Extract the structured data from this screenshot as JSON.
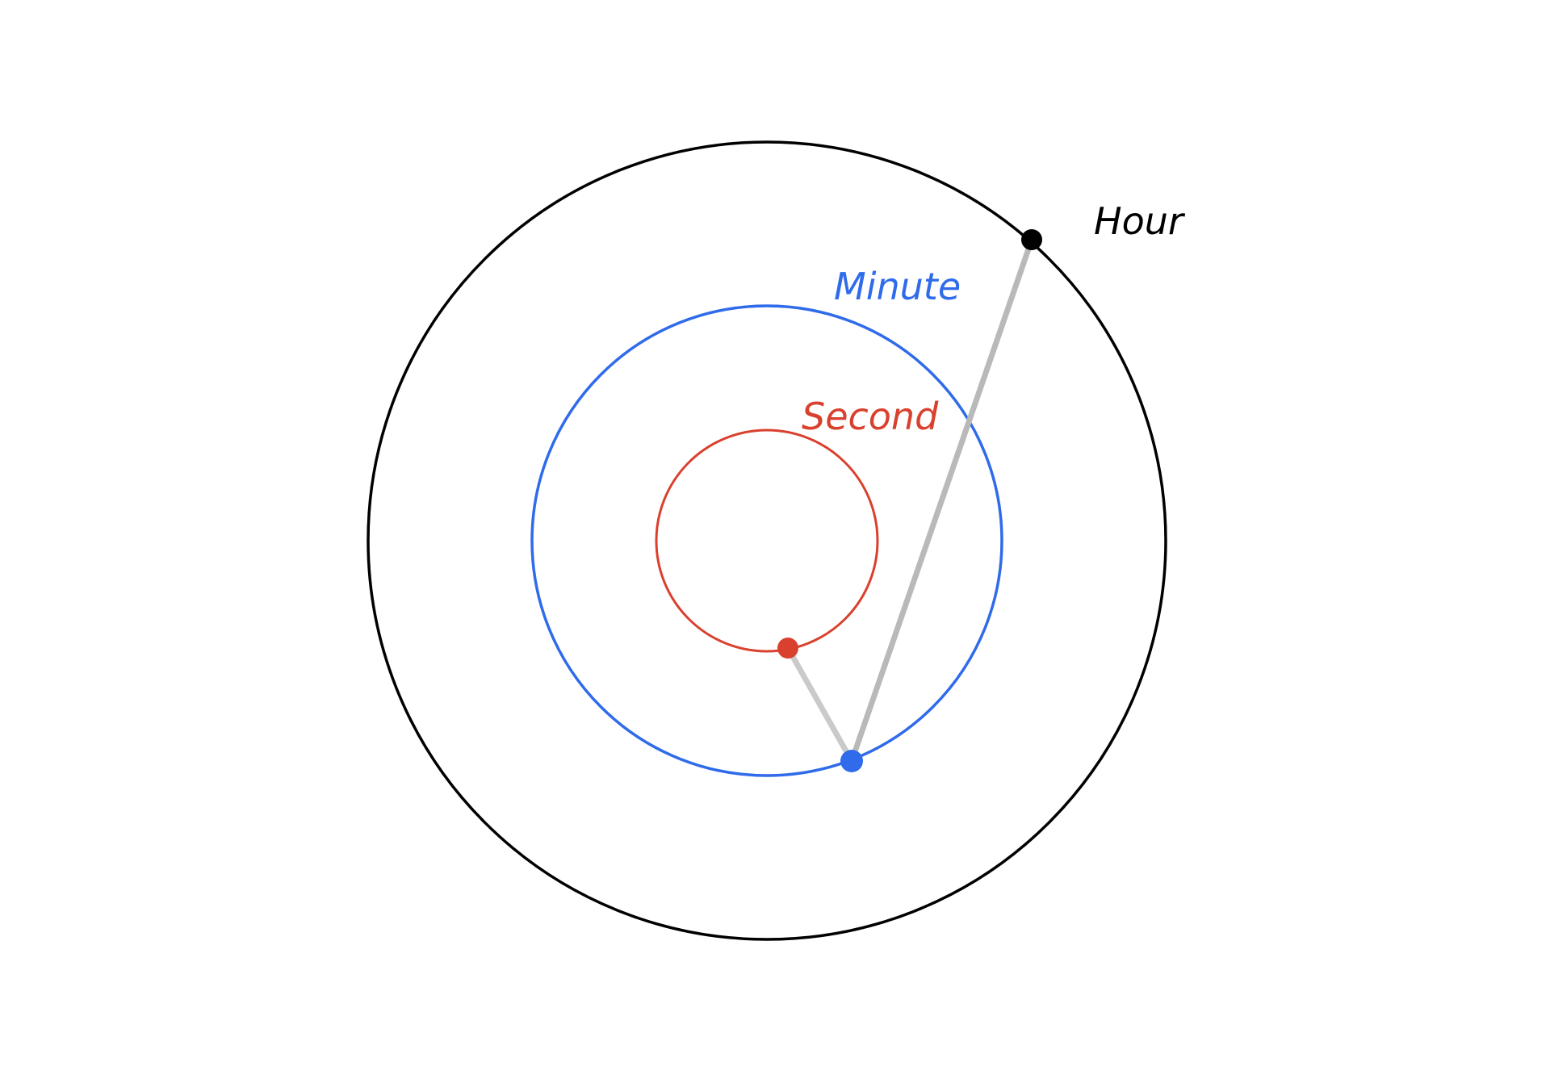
{
  "labels": {
    "hour": "Hour",
    "minute": "Minute",
    "second": "Second"
  },
  "colors": {
    "background": "#ffffff",
    "hour": "#000000",
    "minute": "#2f6bea",
    "second": "#d9402e",
    "connector": "#b9b9b9"
  }
}
